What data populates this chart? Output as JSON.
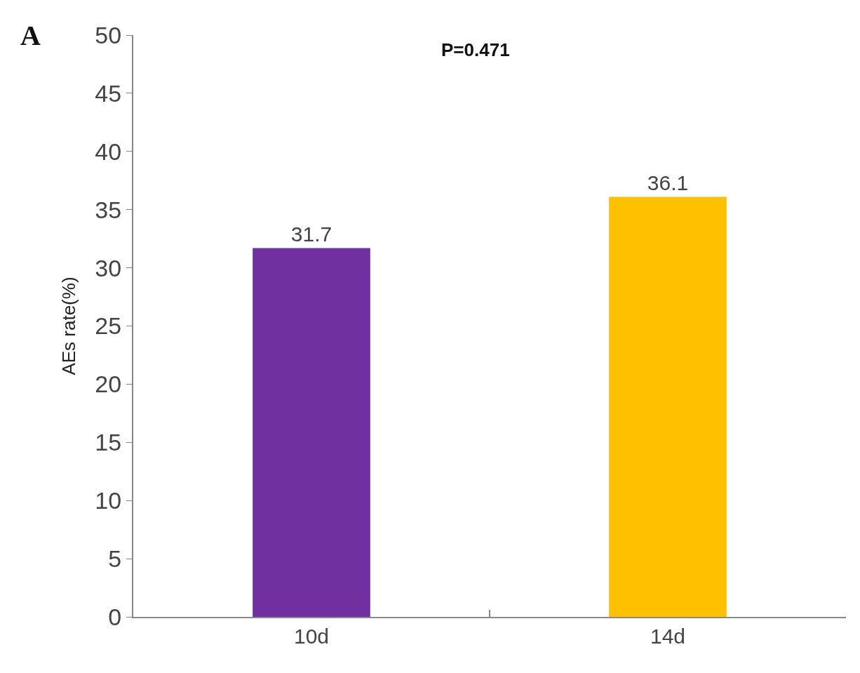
{
  "chart_data": {
    "type": "bar",
    "ylabel": "AEs rate(%)",
    "categories": [
      "10d",
      "14d"
    ],
    "values": [
      31.7,
      36.1
    ],
    "colors": [
      "#7030a0",
      "#ffc000"
    ],
    "ylim": [
      0,
      50
    ],
    "yticks": [
      0,
      5,
      10,
      15,
      20,
      25,
      30,
      35,
      40,
      45,
      50
    ],
    "data_labels": true,
    "annotations": [
      "A",
      "P=0.471"
    ]
  }
}
